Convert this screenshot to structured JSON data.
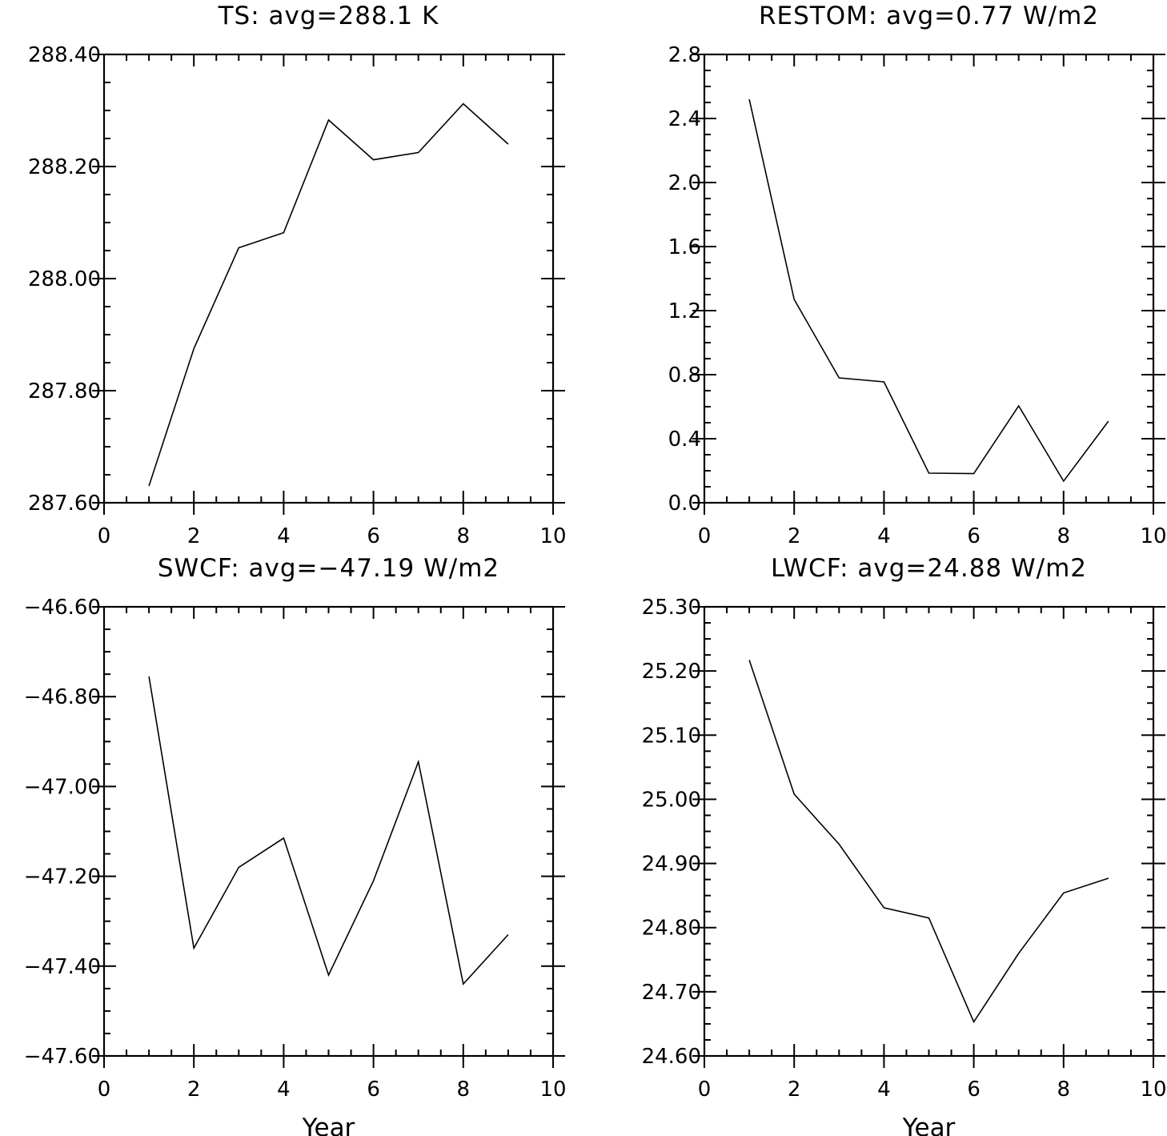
{
  "figure": {
    "colors": {
      "line": "#000000",
      "background": "#ffffff"
    }
  },
  "chart_data": [
    {
      "type": "line",
      "title": "TS: avg=288.1 K",
      "xlabel": "",
      "ylabel": "",
      "xlim": [
        0,
        10
      ],
      "ylim": [
        287.6,
        288.4
      ],
      "xticks": [
        "0",
        "2",
        "4",
        "6",
        "8",
        "10"
      ],
      "yticks": [
        "287.60",
        "287.80",
        "288.00",
        "288.20",
        "288.40"
      ],
      "grid": false,
      "series": [
        {
          "x": [
            1,
            2,
            3,
            4,
            5,
            6,
            7,
            8,
            9
          ],
          "y": [
            287.63,
            287.875,
            288.055,
            288.082,
            288.283,
            288.212,
            288.225,
            288.312,
            288.24
          ]
        }
      ]
    },
    {
      "type": "line",
      "title": "RESTOM: avg=0.77 W/m2",
      "xlabel": "",
      "ylabel": "",
      "xlim": [
        0,
        10
      ],
      "ylim": [
        0,
        2.8
      ],
      "xticks": [
        "0",
        "2",
        "4",
        "6",
        "8",
        "10"
      ],
      "yticks": [
        "0.0",
        "0.4",
        "0.8",
        "1.2",
        "1.6",
        "2.0",
        "2.4",
        "2.8"
      ],
      "grid": false,
      "series": [
        {
          "x": [
            1,
            2,
            3,
            4,
            5,
            6,
            7,
            8,
            9
          ],
          "y": [
            2.52,
            1.27,
            0.78,
            0.755,
            0.185,
            0.182,
            0.605,
            0.135,
            0.51
          ]
        }
      ]
    },
    {
      "type": "line",
      "title": "SWCF: avg=−47.19 W/m2",
      "xlabel": "Year",
      "ylabel": "",
      "xlim": [
        0,
        10
      ],
      "ylim": [
        -47.6,
        -46.6
      ],
      "xticks": [
        "0",
        "2",
        "4",
        "6",
        "8",
        "10"
      ],
      "yticks": [
        "−47.60",
        "−47.40",
        "−47.20",
        "−47.00",
        "−46.80",
        "−46.60"
      ],
      "grid": false,
      "series": [
        {
          "x": [
            1,
            2,
            3,
            4,
            5,
            6,
            7,
            8,
            9
          ],
          "y": [
            -46.755,
            -47.36,
            -47.18,
            -47.115,
            -47.42,
            -47.21,
            -46.945,
            -47.44,
            -47.33
          ]
        }
      ]
    },
    {
      "type": "line",
      "title": "LWCF: avg=24.88 W/m2",
      "xlabel": "Year",
      "ylabel": "",
      "xlim": [
        0,
        10
      ],
      "ylim": [
        24.6,
        25.3
      ],
      "xticks": [
        "0",
        "2",
        "4",
        "6",
        "8",
        "10"
      ],
      "yticks": [
        "24.60",
        "24.70",
        "24.80",
        "24.90",
        "25.00",
        "25.10",
        "25.20",
        "25.30"
      ],
      "grid": false,
      "series": [
        {
          "x": [
            1,
            2,
            3,
            4,
            5,
            6,
            7,
            8,
            9
          ],
          "y": [
            25.217,
            25.008,
            24.93,
            24.831,
            24.815,
            24.653,
            24.76,
            24.854,
            24.877
          ]
        }
      ]
    }
  ]
}
